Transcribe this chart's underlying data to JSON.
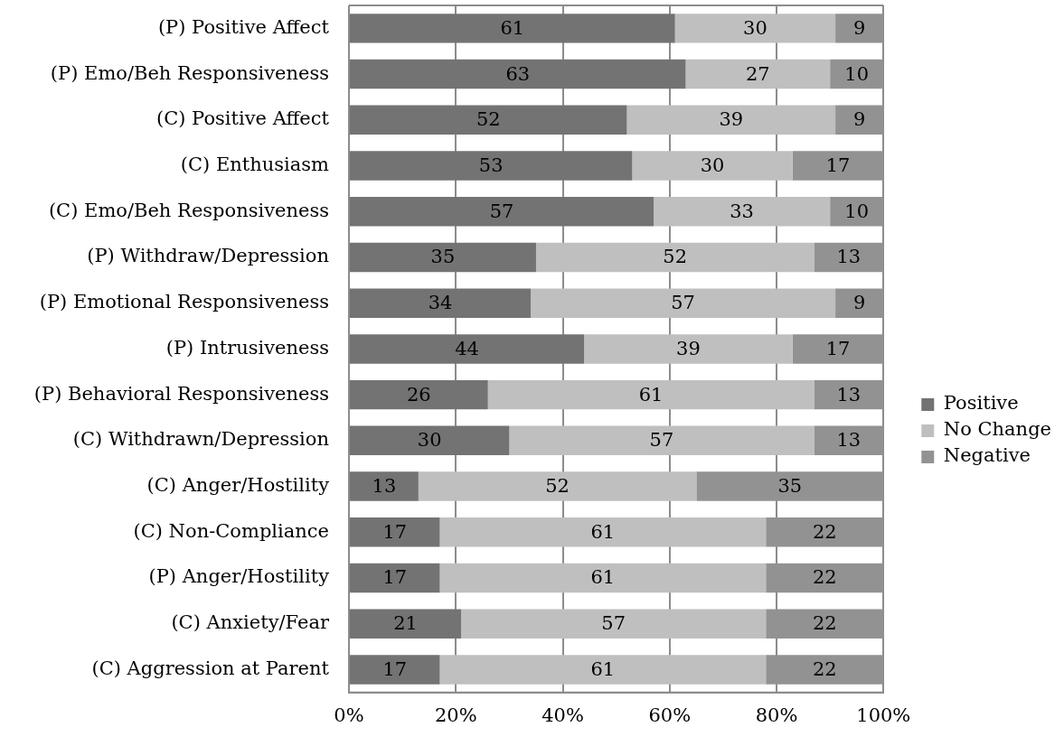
{
  "chart_data": {
    "type": "bar",
    "orientation": "horizontal",
    "stacked": true,
    "categories": [
      "(P) Positive Affect",
      "(P) Emo/Beh Responsiveness",
      "(C) Positive Affect",
      "(C) Enthusiasm",
      "(C) Emo/Beh Responsiveness",
      "(P) Withdraw/Depression",
      "(P) Emotional Responsiveness",
      "(P) Intrusiveness",
      "(P) Behavioral Responsiveness",
      "(C) Withdrawn/Depression",
      "(C) Anger/Hostility",
      "(C) Non-Compliance",
      "(P) Anger/Hostility",
      "(C) Anxiety/Fear",
      "(C) Aggression at Parent"
    ],
    "series": [
      {
        "name": "Positive",
        "color": "#737373",
        "values": [
          61,
          63,
          52,
          53,
          57,
          35,
          34,
          44,
          26,
          30,
          13,
          17,
          17,
          21,
          17
        ]
      },
      {
        "name": "No Change",
        "color": "#bfbfbf",
        "values": [
          30,
          27,
          39,
          30,
          33,
          52,
          57,
          39,
          61,
          57,
          52,
          61,
          61,
          57,
          61
        ]
      },
      {
        "name": "Negative",
        "color": "#929292",
        "values": [
          9,
          10,
          9,
          17,
          10,
          13,
          9,
          17,
          13,
          13,
          35,
          22,
          22,
          22,
          22
        ]
      }
    ],
    "xlim": [
      0,
      100
    ],
    "xticks": [
      {
        "value": 0,
        "label": "0%"
      },
      {
        "value": 20,
        "label": "20%"
      },
      {
        "value": 40,
        "label": "40%"
      },
      {
        "value": 60,
        "label": "60%"
      },
      {
        "value": 80,
        "label": "80%"
      },
      {
        "value": 100,
        "label": "100%"
      }
    ],
    "grid": "x",
    "legend": "right",
    "data_labels": true
  }
}
